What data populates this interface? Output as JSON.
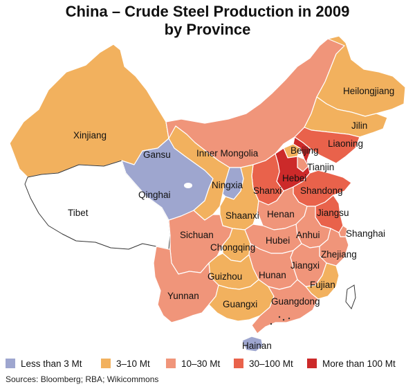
{
  "title": {
    "line1": "China – Crude Steel Production in 2009",
    "line2": "by Province"
  },
  "colors": {
    "lt3": "#9ea6cf",
    "c3_10": "#f2b15e",
    "c10_30": "#f0957a",
    "c30_100": "#e9624b",
    "gt100": "#cc2a2a",
    "none": "#ffffff",
    "border": "#ffffff",
    "outline": "#333333"
  },
  "legend": [
    {
      "label": "Less than 3 Mt",
      "color": "#9ea6cf"
    },
    {
      "label": "3–10 Mt",
      "color": "#f2b15e"
    },
    {
      "label": "10–30 Mt",
      "color": "#f0957a"
    },
    {
      "label": "30–100 Mt",
      "color": "#e9624b"
    },
    {
      "label": "More than 100 Mt",
      "color": "#cc2a2a"
    }
  ],
  "source": "Sources: Bloomberg; RBA; Wikicommons",
  "provinces": [
    {
      "name": "Heilongjiang",
      "category": "3–10 Mt"
    },
    {
      "name": "Jilin",
      "category": "3–10 Mt"
    },
    {
      "name": "Liaoning",
      "category": "30–100 Mt"
    },
    {
      "name": "Inner Mongolia",
      "category": "10–30 Mt"
    },
    {
      "name": "Xinjiang",
      "category": "3–10 Mt"
    },
    {
      "name": "Gansu",
      "category": "3–10 Mt"
    },
    {
      "name": "Qinghai",
      "category": "Less than 3 Mt"
    },
    {
      "name": "Tibet",
      "category": "no data"
    },
    {
      "name": "Ningxia",
      "category": "Less than 3 Mt"
    },
    {
      "name": "Beijing",
      "category": "3–10 Mt"
    },
    {
      "name": "Tianjin",
      "category": "10–30 Mt"
    },
    {
      "name": "Hebei",
      "category": "More than 100 Mt"
    },
    {
      "name": "Shanxi",
      "category": "30–100 Mt"
    },
    {
      "name": "Shandong",
      "category": "30–100 Mt"
    },
    {
      "name": "Shaanxi",
      "category": "3–10 Mt"
    },
    {
      "name": "Henan",
      "category": "10–30 Mt"
    },
    {
      "name": "Jiangsu",
      "category": "30–100 Mt"
    },
    {
      "name": "Shanghai",
      "category": "10–30 Mt"
    },
    {
      "name": "Anhui",
      "category": "10–30 Mt"
    },
    {
      "name": "Hubei",
      "category": "10–30 Mt"
    },
    {
      "name": "Zhejiang",
      "category": "10–30 Mt"
    },
    {
      "name": "Sichuan",
      "category": "10–30 Mt"
    },
    {
      "name": "Chongqing",
      "category": "3–10 Mt"
    },
    {
      "name": "Jiangxi",
      "category": "10–30 Mt"
    },
    {
      "name": "Hunan",
      "category": "10–30 Mt"
    },
    {
      "name": "Guizhou",
      "category": "3–10 Mt"
    },
    {
      "name": "Fujian",
      "category": "3–10 Mt"
    },
    {
      "name": "Yunnan",
      "category": "10–30 Mt"
    },
    {
      "name": "Guangxi",
      "category": "3–10 Mt"
    },
    {
      "name": "Guangdong",
      "category": "10–30 Mt"
    },
    {
      "name": "Hainan",
      "category": "Less than 3 Mt"
    }
  ]
}
